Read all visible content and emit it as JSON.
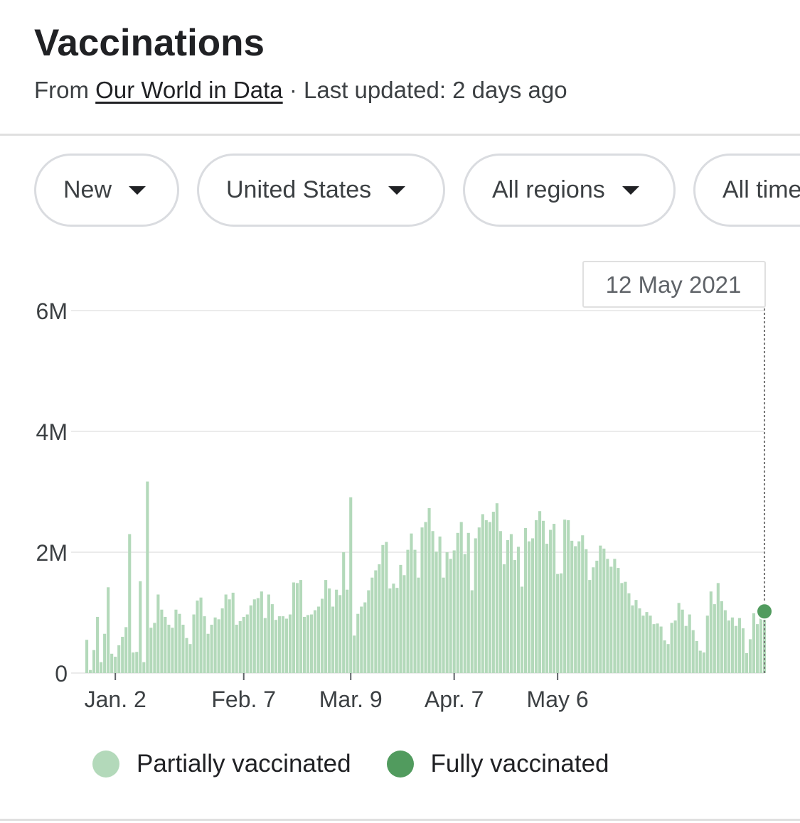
{
  "header": {
    "title": "Vaccinations",
    "source_prefix": "From",
    "source_link": "Our World in Data",
    "updated": "· Last updated: 2 days ago"
  },
  "filters": [
    {
      "label": "New"
    },
    {
      "label": "United States"
    },
    {
      "label": "All regions"
    },
    {
      "label": "All time"
    }
  ],
  "colors": {
    "partial": "#b3d9ba",
    "full": "#519b5e",
    "grid": "#ebebeb",
    "text": "#3c4043"
  },
  "tooltip": {
    "date": "12 May 2021"
  },
  "legend": {
    "partial": "Partially vaccinated",
    "full": "Fully vaccinated"
  },
  "chart_data": {
    "type": "bar",
    "stacked": true,
    "y_ticks": [
      "0",
      "2M",
      "4M",
      "6M"
    ],
    "y_tick_values": [
      0,
      2000000,
      4000000,
      6000000
    ],
    "ylim": [
      0,
      6000000
    ],
    "x_ticks": [
      "Jan. 2",
      "Feb. 7",
      "Mar. 9",
      "Apr. 7",
      "May 6"
    ],
    "first_date": "2020-12-25",
    "last_date": "2021-05-12",
    "grid": true,
    "legend_position": "bottom",
    "series": [
      {
        "name": "Partially vaccinated",
        "values": [
          0.55,
          0.05,
          0.38,
          0.93,
          0.18,
          0.65,
          1.42,
          0.32,
          0.27,
          0.46,
          0.6,
          0.76,
          2.3,
          0.34,
          0.35,
          1.52,
          0.18,
          3.17,
          0.75,
          0.83,
          1.3,
          1.05,
          0.93,
          0.8,
          0.75,
          1.05,
          0.98,
          0.8,
          0.58,
          0.48,
          0.97,
          1.2,
          1.25,
          0.94,
          0.65,
          0.8,
          0.92,
          0.89,
          1.07,
          1.3,
          1.22,
          1.33,
          0.8,
          0.86,
          0.93,
          0.97,
          1.12,
          1.22,
          1.24,
          1.35,
          0.91,
          1.3,
          1.14,
          0.88,
          0.94,
          0.94,
          0.9,
          0.97,
          1.5,
          1.49,
          1.54,
          0.93,
          0.96,
          0.97,
          1.04,
          1.1,
          1.23,
          1.54,
          1.4,
          1.1,
          1.38,
          1.29,
          2.0,
          1.38,
          2.91,
          0.62,
          0.98,
          1.1,
          1.17,
          1.37,
          1.58,
          1.7,
          1.8,
          2.12,
          2.17,
          1.4,
          1.48,
          1.41,
          1.79,
          1.62,
          2.04,
          2.31,
          2.04,
          1.58,
          2.41,
          2.5,
          2.73,
          2.35,
          2.01,
          2.26,
          1.58,
          2.0,
          1.89,
          2.03,
          2.32,
          2.5,
          1.97,
          2.32,
          1.37,
          2.23,
          2.41,
          2.63,
          2.53,
          2.5,
          2.67,
          2.81,
          2.35,
          1.8,
          2.2,
          2.3,
          1.87,
          2.09,
          1.43,
          2.4,
          2.18,
          2.23,
          2.53,
          2.68,
          2.52,
          2.14,
          2.37,
          2.47,
          1.64,
          1.65,
          2.54,
          2.53,
          2.19,
          2.1,
          2.18,
          2.28,
          2.05,
          1.54,
          1.75,
          1.86,
          2.11,
          2.06,
          1.89,
          1.76,
          1.89,
          1.74,
          1.49,
          1.51,
          1.32,
          1.12,
          1.21,
          1.07,
          0.95,
          1.01,
          0.95,
          0.81,
          0.82,
          0.77,
          0.54,
          0.48,
          0.83,
          0.87,
          1.16,
          1.05,
          0.78,
          0.97,
          0.71,
          0.53,
          0.37,
          0.34,
          0.95,
          1.35,
          1.14,
          1.49,
          1.19,
          1.04,
          0.87,
          0.92,
          0.78,
          0.91,
          0.74,
          0.33,
          0.56,
          0.99,
          0.81,
          1.03,
          1.02
        ]
      },
      {
        "name": "Fully vaccinated",
        "values": [
          0,
          0,
          0,
          0,
          0,
          0,
          0,
          0,
          0,
          0,
          0,
          0,
          0,
          0,
          0,
          0,
          0,
          0,
          0,
          0,
          0,
          0,
          0,
          0,
          0,
          0,
          0,
          0,
          0,
          0,
          0,
          0,
          0,
          0,
          0,
          0,
          0,
          0,
          0,
          0,
          0,
          0,
          0,
          0,
          0,
          0,
          0,
          0,
          0,
          0,
          0,
          0,
          0,
          0,
          0,
          0,
          0,
          0,
          0,
          0,
          0,
          0,
          0,
          0,
          0,
          0,
          0,
          0,
          0,
          0,
          0,
          0,
          0,
          0,
          0,
          0,
          0,
          0,
          0,
          0,
          0,
          0,
          0,
          0,
          0,
          0,
          0,
          0,
          0,
          0,
          0,
          0,
          0,
          0,
          0,
          0,
          0,
          0,
          0,
          0,
          0,
          0,
          0,
          0,
          0,
          0,
          0,
          0,
          0,
          0,
          0,
          0,
          0,
          0,
          0,
          0,
          0,
          0,
          0,
          0,
          0,
          0,
          0,
          0,
          0,
          0,
          0,
          0,
          0,
          0,
          0,
          0,
          0,
          0,
          0,
          0,
          0,
          0,
          0,
          0,
          0,
          0,
          0,
          0,
          0,
          0,
          0,
          0,
          0,
          0,
          0,
          0,
          0,
          0,
          0,
          0,
          0,
          0,
          0,
          0,
          0,
          0,
          0,
          0,
          0,
          0,
          0,
          0,
          0,
          0,
          0,
          0,
          0,
          0,
          0,
          0,
          0,
          0,
          0,
          0,
          0,
          0,
          0,
          0,
          0,
          0,
          0,
          0,
          0,
          0,
          0,
          0,
          0,
          0,
          0,
          0,
          0,
          0,
          0,
          0,
          0,
          0,
          0
        ]
      }
    ]
  }
}
